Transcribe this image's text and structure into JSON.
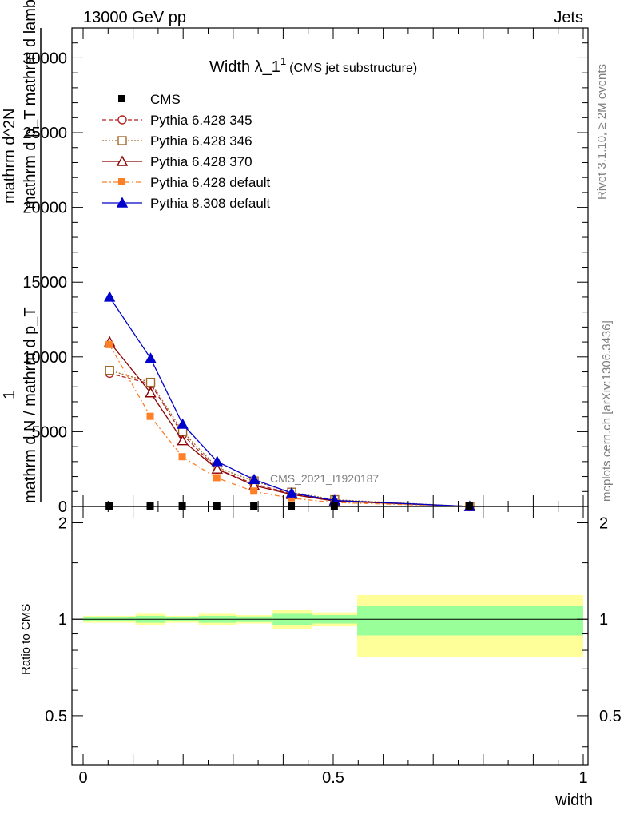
{
  "header": {
    "left": "13000 GeV pp",
    "right": "Jets"
  },
  "side": {
    "rivet": "Rivet 3.1.10, ≥ 2M events",
    "mcplots": "mcplots.cern.ch [arXiv:1306.3436]"
  },
  "watermark": "CMS_2021_I1920187",
  "colors": {
    "ratio_inner": "#99ff99",
    "ratio_outer": "#ffff99"
  },
  "chart_data": [
    {
      "type": "line",
      "title": "Width λ_1¹ (CMS jet substructure)",
      "title_main": "Width λ_1",
      "title_sup": "1",
      "title_tail": "(CMS jet substructure)",
      "ylabel_lines": [
        "1",
        "mathrm d N / mathrm d p_T",
        "mathrm d^2N",
        "mathrm d p_T mathrm d lambda"
      ],
      "ylim": [
        0,
        32000
      ],
      "xlim": [
        0,
        1
      ],
      "yticks": [
        0,
        5000,
        10000,
        15000,
        20000,
        25000,
        30000
      ],
      "ytick_labels": [
        "0",
        "5000",
        "10000",
        "15000",
        "20000",
        "25000",
        "30000"
      ],
      "x": [
        0.053,
        0.135,
        0.199,
        0.268,
        0.342,
        0.417,
        0.503,
        0.773
      ],
      "series": [
        {
          "name": "CMS",
          "color": "#000000",
          "marker": "square",
          "values": [
            0,
            0,
            0,
            0,
            0,
            0,
            0,
            0
          ]
        },
        {
          "name": "Pythia 6.428 345",
          "color": "#b22222",
          "marker": "circle-open",
          "dash": "5,3",
          "values": [
            8900,
            8200,
            4800,
            2500,
            1500,
            850,
            400,
            0
          ]
        },
        {
          "name": "Pythia 6.428 346",
          "color": "#a0682a",
          "marker": "square-open",
          "dash": "2,2",
          "values": [
            9100,
            8300,
            5000,
            2600,
            1700,
            950,
            450,
            0
          ]
        },
        {
          "name": "Pythia 6.428 370",
          "color": "#8b0000",
          "marker": "triangle-open",
          "values": [
            11000,
            7600,
            4400,
            2500,
            1400,
            800,
            360,
            0
          ]
        },
        {
          "name": "Pythia 6.428 default",
          "color": "#ff7f27",
          "marker": "square",
          "dash": "6,3,2,3",
          "values": [
            10800,
            6000,
            3300,
            1900,
            1000,
            550,
            260,
            0
          ]
        },
        {
          "name": "Pythia 8.308 default",
          "color": "#0000cc",
          "marker": "triangle",
          "values": [
            14000,
            9900,
            5500,
            3000,
            1800,
            900,
            400,
            0
          ]
        }
      ]
    },
    {
      "type": "area",
      "ylabel": "Ratio to CMS",
      "xlabel": "width",
      "xlim": [
        0,
        1
      ],
      "ylim": [
        0.35,
        2.25
      ],
      "ytick_labels": [
        "0.5",
        "1",
        "2"
      ],
      "yticks": [
        0.5,
        1,
        2
      ],
      "xtick_labels": [
        "0",
        "0.5",
        "1"
      ],
      "xticks": [
        0,
        0.5,
        1
      ],
      "bins": [
        {
          "x0": 0.0,
          "x1": 0.105,
          "inner": [
            0.985,
            1.015
          ],
          "outer": [
            0.975,
            1.025
          ]
        },
        {
          "x0": 0.105,
          "x1": 0.165,
          "inner": [
            0.975,
            1.025
          ],
          "outer": [
            0.96,
            1.04
          ]
        },
        {
          "x0": 0.165,
          "x1": 0.231,
          "inner": [
            0.985,
            1.015
          ],
          "outer": [
            0.975,
            1.025
          ]
        },
        {
          "x0": 0.231,
          "x1": 0.306,
          "inner": [
            0.975,
            1.025
          ],
          "outer": [
            0.96,
            1.04
          ]
        },
        {
          "x0": 0.306,
          "x1": 0.379,
          "inner": [
            0.98,
            1.02
          ],
          "outer": [
            0.97,
            1.03
          ]
        },
        {
          "x0": 0.379,
          "x1": 0.457,
          "inner": [
            0.96,
            1.04
          ],
          "outer": [
            0.93,
            1.07
          ]
        },
        {
          "x0": 0.457,
          "x1": 0.548,
          "inner": [
            0.97,
            1.03
          ],
          "outer": [
            0.95,
            1.05
          ]
        },
        {
          "x0": 0.548,
          "x1": 1.0,
          "inner": [
            0.89,
            1.1
          ],
          "outer": [
            0.76,
            1.19
          ]
        }
      ]
    }
  ]
}
